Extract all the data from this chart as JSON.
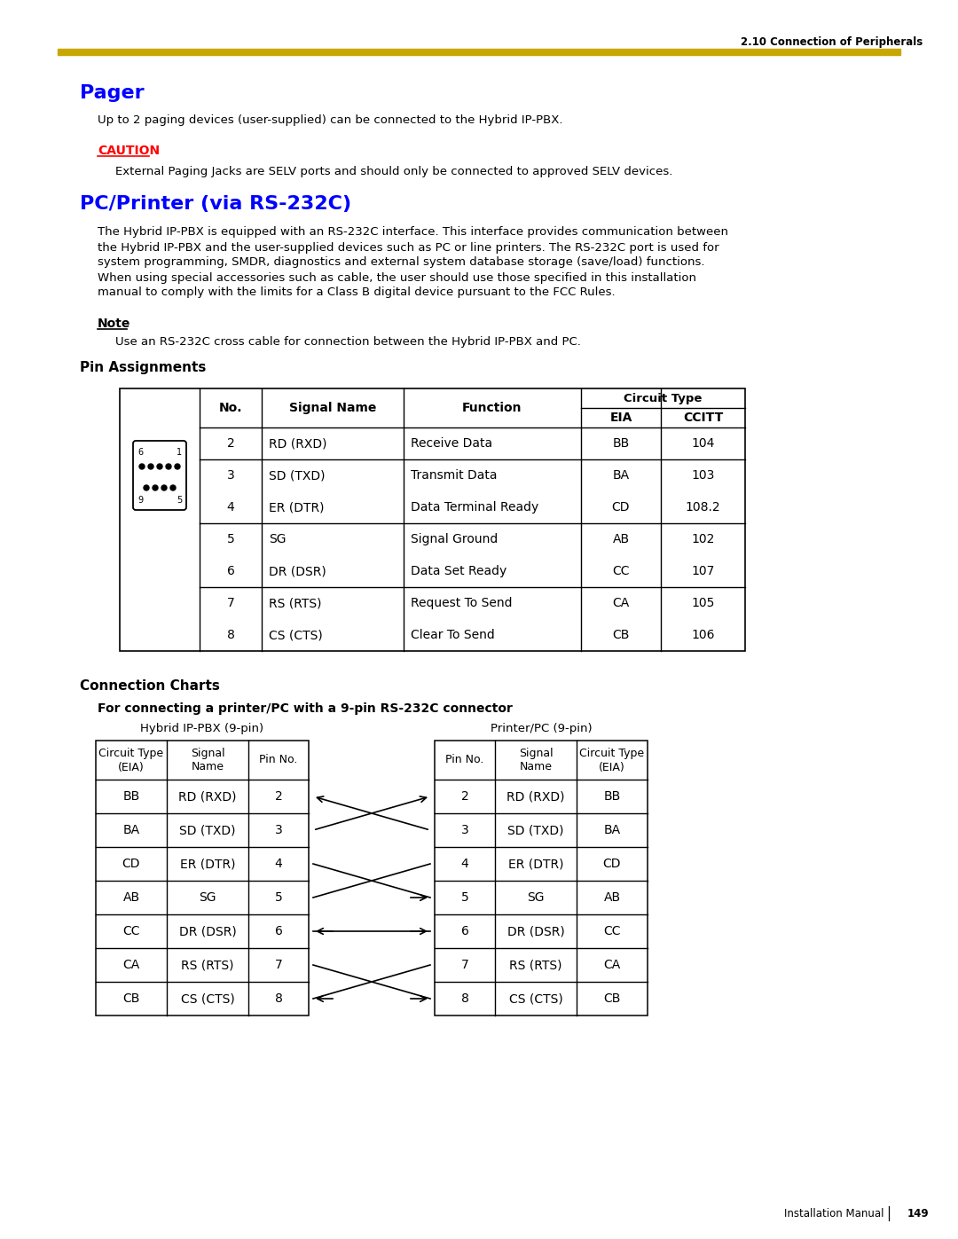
{
  "header_text": "2.10 Connection of Peripherals",
  "gold_bar_color": "#C8A800",
  "page_bg": "#FFFFFF",
  "pager_title": "Pager",
  "pager_title_color": "#0000FF",
  "pager_body": "Up to 2 paging devices (user-supplied) can be connected to the Hybrid IP-PBX.",
  "caution_label": "CAUTION",
  "caution_color": "#FF0000",
  "caution_body": "External Paging Jacks are SELV ports and should only be connected to approved SELV devices.",
  "pc_title": "PC/Printer (via RS-232C)",
  "pc_title_color": "#0000FF",
  "pc_body_lines": [
    "The Hybrid IP-PBX is equipped with an RS-232C interface. This interface provides communication between",
    "the Hybrid IP-PBX and the user-supplied devices such as PC or line printers. The RS-232C port is used for",
    "system programming, SMDR, diagnostics and external system database storage (save/load) functions.",
    "When using special accessories such as cable, the user should use those specified in this installation",
    "manual to comply with the limits for a Class B digital device pursuant to the FCC Rules."
  ],
  "note_label": "Note",
  "note_body": "Use an RS-232C cross cable for connection between the Hybrid IP-PBX and PC.",
  "pin_assignments_title": "Pin Assignments",
  "pin_table_rows": [
    [
      "2",
      "RD (RXD)",
      "Receive Data",
      "BB",
      "104"
    ],
    [
      "3",
      "SD (TXD)",
      "Transmit Data",
      "BA",
      "103"
    ],
    [
      "4",
      "ER (DTR)",
      "Data Terminal Ready",
      "CD",
      "108.2"
    ],
    [
      "5",
      "SG",
      "Signal Ground",
      "AB",
      "102"
    ],
    [
      "6",
      "DR (DSR)",
      "Data Set Ready",
      "CC",
      "107"
    ],
    [
      "7",
      "RS (RTS)",
      "Request To Send",
      "CA",
      "105"
    ],
    [
      "8",
      "CS (CTS)",
      "Clear To Send",
      "CB",
      "106"
    ]
  ],
  "connection_charts_title": "Connection Charts",
  "connection_subtitle": "For connecting a printer/PC with a 9-pin RS-232C connector",
  "left_table_title": "Hybrid IP-PBX (9-pin)",
  "right_table_title": "Printer/PC (9-pin)",
  "conn_rows": [
    [
      "BB",
      "RD (RXD)",
      "2",
      "2",
      "RD (RXD)",
      "BB"
    ],
    [
      "BA",
      "SD (TXD)",
      "3",
      "3",
      "SD (TXD)",
      "BA"
    ],
    [
      "CD",
      "ER (DTR)",
      "4",
      "4",
      "ER (DTR)",
      "CD"
    ],
    [
      "AB",
      "SG",
      "5",
      "5",
      "SG",
      "AB"
    ],
    [
      "CC",
      "DR (DSR)",
      "6",
      "6",
      "DR (DSR)",
      "CC"
    ],
    [
      "CA",
      "RS (RTS)",
      "7",
      "7",
      "RS (RTS)",
      "CA"
    ],
    [
      "CB",
      "CS (CTS)",
      "8",
      "8",
      "CS (CTS)",
      "CB"
    ]
  ],
  "page_footer": "Installation Manual",
  "page_number": "149"
}
